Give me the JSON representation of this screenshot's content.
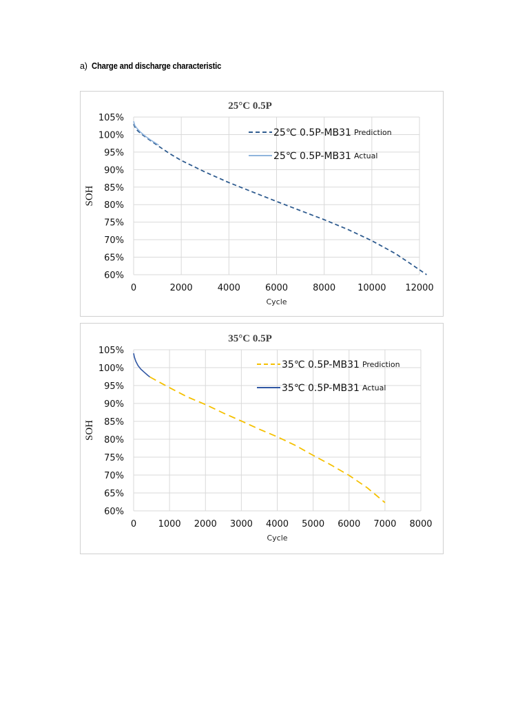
{
  "heading": {
    "marker": "a)",
    "title": "Charge and discharge characteristic"
  },
  "chart_data": [
    {
      "type": "line",
      "title": "25°C 0.5P",
      "xlabel": "Cycle",
      "ylabel": "SOH",
      "xlim": [
        0,
        12000
      ],
      "ylim": [
        60,
        105
      ],
      "x_ticks": [
        "0",
        "2000",
        "4000",
        "6000",
        "8000",
        "10000",
        "12000"
      ],
      "y_ticks": [
        "60%",
        "65%",
        "70%",
        "75%",
        "80%",
        "85%",
        "90%",
        "95%",
        "100%",
        "105%"
      ],
      "grid": true,
      "legend": "top-right",
      "series": [
        {
          "name": "25℃ 0.5P-MB31",
          "name_suffix": "Prediction",
          "style": "dashed",
          "color": "#2e5b8f",
          "x": [
            0,
            100,
            300,
            600,
            1000,
            1500,
            2000,
            3000,
            4000,
            5000,
            6000,
            7000,
            8000,
            9000,
            10000,
            11000,
            11700,
            12300
          ],
          "y": [
            103,
            101.5,
            100.3,
            98.8,
            96.9,
            94.6,
            92.6,
            89.3,
            86.3,
            83.6,
            80.9,
            78.3,
            75.7,
            72.9,
            69.7,
            66,
            62.8,
            60
          ]
        },
        {
          "name": "25℃ 0.5P-MB31",
          "name_suffix": "Actual",
          "style": "solid",
          "color": "#8fb4dd",
          "x": [
            0,
            50,
            150,
            300,
            500,
            750,
            1050
          ],
          "y": [
            103.8,
            102.6,
            101.7,
            100.6,
            99.5,
            98.3,
            97
          ]
        }
      ]
    },
    {
      "type": "line",
      "title": "35°C 0.5P",
      "xlabel": "Cycle",
      "ylabel": "SOH",
      "xlim": [
        0,
        8000
      ],
      "ylim": [
        60,
        105
      ],
      "x_ticks": [
        "0",
        "1000",
        "2000",
        "3000",
        "4000",
        "5000",
        "6000",
        "7000",
        "8000"
      ],
      "y_ticks": [
        "60%",
        "65%",
        "70%",
        "75%",
        "80%",
        "85%",
        "90%",
        "95%",
        "100%",
        "105%"
      ],
      "grid": true,
      "legend": "top-right",
      "series": [
        {
          "name": "35℃ 0.5P-MB31",
          "name_suffix": "Prediction",
          "style": "dashed",
          "color": "#f5c000",
          "x": [
            450,
            1000,
            1500,
            2000,
            2500,
            3000,
            3500,
            4000,
            4500,
            5000,
            5500,
            6000,
            6500,
            7000
          ],
          "y": [
            97.4,
            94.4,
            91.8,
            89.7,
            87.3,
            85.1,
            82.8,
            80.7,
            78.3,
            75.5,
            72.8,
            69.9,
            66.5,
            62.3
          ]
        },
        {
          "name": "35℃ 0.5P-MB31",
          "name_suffix": "Actual",
          "style": "solid",
          "color": "#2f56a3",
          "x": [
            0,
            20,
            60,
            120,
            200,
            300,
            400,
            450
          ],
          "y": [
            104,
            103,
            101.8,
            100.6,
            99.6,
            98.7,
            97.8,
            97.4
          ]
        }
      ]
    }
  ]
}
